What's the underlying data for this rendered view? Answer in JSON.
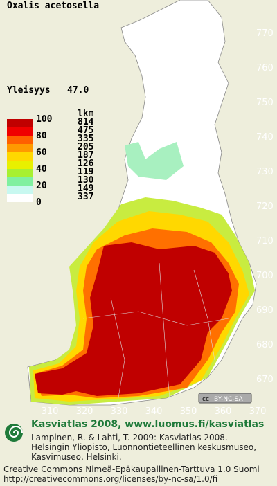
{
  "title": "Oxalis acetosella",
  "frequency": {
    "label": "Yleisyys",
    "value": "47.0"
  },
  "legend": {
    "scale_labels": [
      100,
      80,
      60,
      40,
      20,
      0
    ],
    "count_header": "lkm",
    "counts": [
      814,
      475,
      335,
      205,
      187,
      126,
      119,
      130,
      149,
      337
    ],
    "colors": [
      "#c00000",
      "#f00000",
      "#ff6000",
      "#ff9a00",
      "#ffd800",
      "#e8f000",
      "#a8f030",
      "#80f0a0",
      "#c8f8f0",
      "#ffffff"
    ]
  },
  "map": {
    "northing_ticks": [
      770,
      760,
      750,
      740,
      730,
      720,
      710,
      700,
      690,
      680,
      670
    ],
    "easting_ticks": [
      310,
      320,
      330,
      340,
      350,
      360,
      370
    ]
  },
  "badge": {
    "icon": "cc",
    "text": "BY-NC-SA"
  },
  "footer": {
    "heading": "Kasviatlas 2008, www.luomus.fi/kasviatlas",
    "citation": [
      "Lampinen, R. & Lahti, T. 2009: Kasviatlas 2008. –",
      "Helsingin Yliopisto, Luonnontieteellinen keskusmuseo,",
      "Kasvimuseo, Helsinki."
    ],
    "license": [
      "Creative Commons Nimeä-Epäkaupallinen-Tarttuva 1.0 Suomi",
      "http://creativecommons.org/licenses/by-nc-sa/1.0/fi"
    ]
  }
}
